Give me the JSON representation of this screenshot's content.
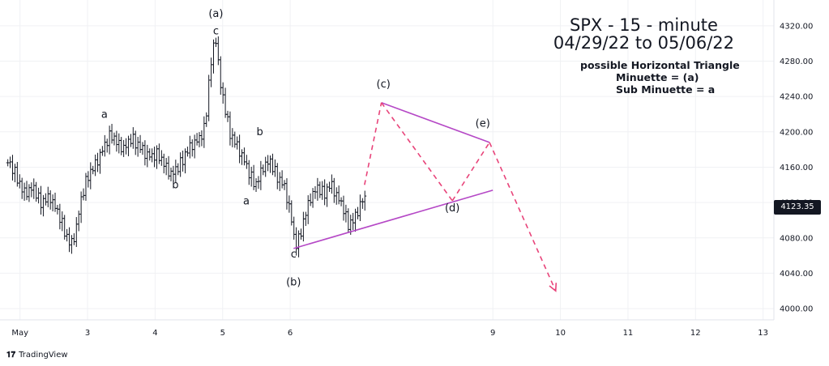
{
  "title": {
    "line1": "SPX - 15 - minute",
    "line2": "04/29/22 to 05/06/22"
  },
  "subtitle": {
    "line1": "possible Horizontal Triangle",
    "line2": "Minuette = (a)",
    "line3": "Sub Minuette = a"
  },
  "last_price_label": "4123.35",
  "logo_text": "TradingView",
  "colors": {
    "candles": "#131722",
    "trendline": "#b548c6",
    "projection": "#e8447a",
    "badge": "#131722",
    "grid": "#f0f1f4"
  },
  "chart_data": {
    "type": "bar",
    "ylim": [
      3990,
      4340
    ],
    "y_ticks": [
      "4000.00",
      "4040.00",
      "4080.00",
      "4120.00",
      "4160.00",
      "4200.00",
      "4240.00",
      "4280.00",
      "4320.00"
    ],
    "x_range": [
      1.8,
      13.1
    ],
    "x_ticks": [
      {
        "x": 2,
        "label": "May"
      },
      {
        "x": 3,
        "label": "3"
      },
      {
        "x": 4,
        "label": "4"
      },
      {
        "x": 5,
        "label": "5"
      },
      {
        "x": 6,
        "label": "6"
      },
      {
        "x": 9,
        "label": "9"
      },
      {
        "x": 10,
        "label": "10"
      },
      {
        "x": 11,
        "label": "11"
      },
      {
        "x": 12,
        "label": "12"
      },
      {
        "x": 13,
        "label": "13"
      }
    ],
    "close_path": [
      [
        1.82,
        4165
      ],
      [
        1.95,
        4150
      ],
      [
        2.05,
        4130
      ],
      [
        2.2,
        4135
      ],
      [
        2.3,
        4120
      ],
      [
        2.45,
        4125
      ],
      [
        2.6,
        4100
      ],
      [
        2.7,
        4080
      ],
      [
        2.75,
        4070
      ],
      [
        2.82,
        4085
      ],
      [
        2.9,
        4120
      ],
      [
        3.0,
        4150
      ],
      [
        3.1,
        4160
      ],
      [
        3.2,
        4175
      ],
      [
        3.3,
        4190
      ],
      [
        3.35,
        4198
      ],
      [
        3.45,
        4185
      ],
      [
        3.55,
        4180
      ],
      [
        3.65,
        4192
      ],
      [
        3.75,
        4185
      ],
      [
        3.85,
        4175
      ],
      [
        3.95,
        4170
      ],
      [
        4.05,
        4175
      ],
      [
        4.15,
        4160
      ],
      [
        4.25,
        4150
      ],
      [
        4.35,
        4160
      ],
      [
        4.45,
        4175
      ],
      [
        4.55,
        4185
      ],
      [
        4.65,
        4190
      ],
      [
        4.72,
        4200
      ],
      [
        4.75,
        4215
      ],
      [
        4.8,
        4260
      ],
      [
        4.85,
        4290
      ],
      [
        4.9,
        4305
      ],
      [
        4.97,
        4250
      ],
      [
        5.05,
        4220
      ],
      [
        5.1,
        4200
      ],
      [
        5.2,
        4185
      ],
      [
        5.3,
        4170
      ],
      [
        5.4,
        4150
      ],
      [
        5.5,
        4140
      ],
      [
        5.6,
        4160
      ],
      [
        5.7,
        4165
      ],
      [
        5.8,
        4150
      ],
      [
        5.9,
        4140
      ],
      [
        6.0,
        4110
      ],
      [
        6.05,
        4080
      ],
      [
        6.1,
        4070
      ],
      [
        6.2,
        4100
      ],
      [
        6.3,
        4125
      ],
      [
        6.4,
        4135
      ],
      [
        6.5,
        4130
      ],
      [
        6.6,
        4140
      ],
      [
        6.7,
        4125
      ],
      [
        6.8,
        4110
      ],
      [
        6.85,
        4095
      ],
      [
        6.95,
        4100
      ],
      [
        7.05,
        4120
      ],
      [
        7.12,
        4123
      ]
    ],
    "annotations": [
      {
        "text": "(a)",
        "x": 4.9,
        "y": 4330
      },
      {
        "text": "c",
        "x": 4.9,
        "y": 4310
      },
      {
        "text": "a",
        "x": 3.25,
        "y": 4216
      },
      {
        "text": "b",
        "x": 4.3,
        "y": 4136
      },
      {
        "text": "b",
        "x": 5.55,
        "y": 4196
      },
      {
        "text": "a",
        "x": 5.35,
        "y": 4118
      },
      {
        "text": "c",
        "x": 6.05,
        "y": 4058
      },
      {
        "text": "(b)",
        "x": 6.05,
        "y": 4026
      },
      {
        "text": "(c)",
        "x": 7.38,
        "y": 4250
      },
      {
        "text": "(d)",
        "x": 8.4,
        "y": 4110
      },
      {
        "text": "(e)",
        "x": 8.85,
        "y": 4206
      }
    ],
    "trendlines": [
      {
        "from": [
          6.05,
          4068
        ],
        "to": [
          9.0,
          4134
        ]
      },
      {
        "from": [
          7.35,
          4233
        ],
        "to": [
          8.95,
          4188
        ]
      }
    ],
    "projection_path": [
      [
        7.1,
        4140
      ],
      [
        7.35,
        4233
      ],
      [
        8.4,
        4122
      ],
      [
        8.95,
        4188
      ],
      [
        9.93,
        4020
      ]
    ]
  }
}
